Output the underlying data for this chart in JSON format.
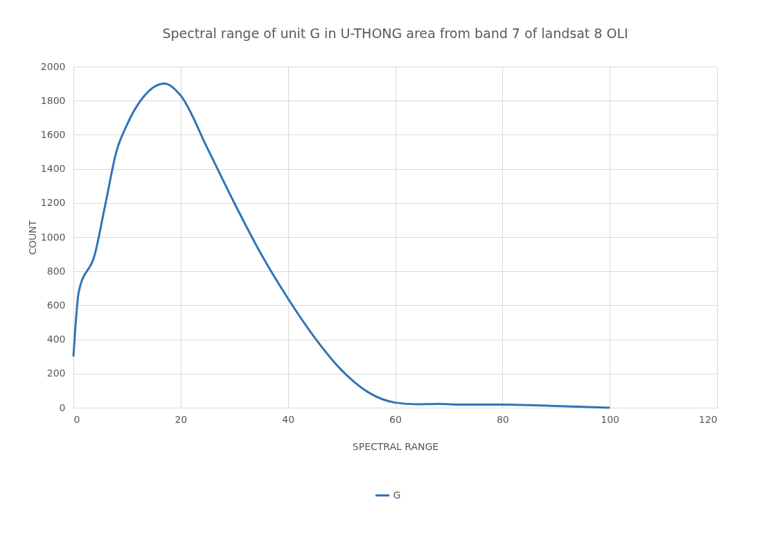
{
  "chart_data": {
    "type": "line",
    "title": "Spectral range of unit G in U-THONG area from band 7 of landsat 8 OLI",
    "xlabel": "SPECTRAL RANGE",
    "ylabel": "COUNT",
    "x": [
      0,
      1,
      4,
      6,
      8,
      10,
      13,
      17,
      20,
      25,
      30,
      35,
      40,
      45,
      50,
      55,
      60,
      64,
      68,
      72,
      80,
      90,
      100
    ],
    "series": [
      {
        "name": "G",
        "color": "#2e75b6",
        "values": [
          300,
          680,
          900,
          1200,
          1500,
          1660,
          1820,
          1900,
          1830,
          1520,
          1200,
          900,
          640,
          410,
          220,
          90,
          30,
          20,
          22,
          18,
          18,
          10,
          0
        ]
      }
    ],
    "xlim": [
      0,
      120
    ],
    "xticks": [
      0,
      20,
      40,
      60,
      80,
      100,
      120
    ],
    "ylim": [
      0,
      2000
    ],
    "yticks": [
      0,
      200,
      400,
      600,
      800,
      1000,
      1200,
      1400,
      1600,
      1800,
      2000
    ],
    "grid": true,
    "legend": "bottom",
    "marker": "none",
    "line_style": "solid"
  }
}
